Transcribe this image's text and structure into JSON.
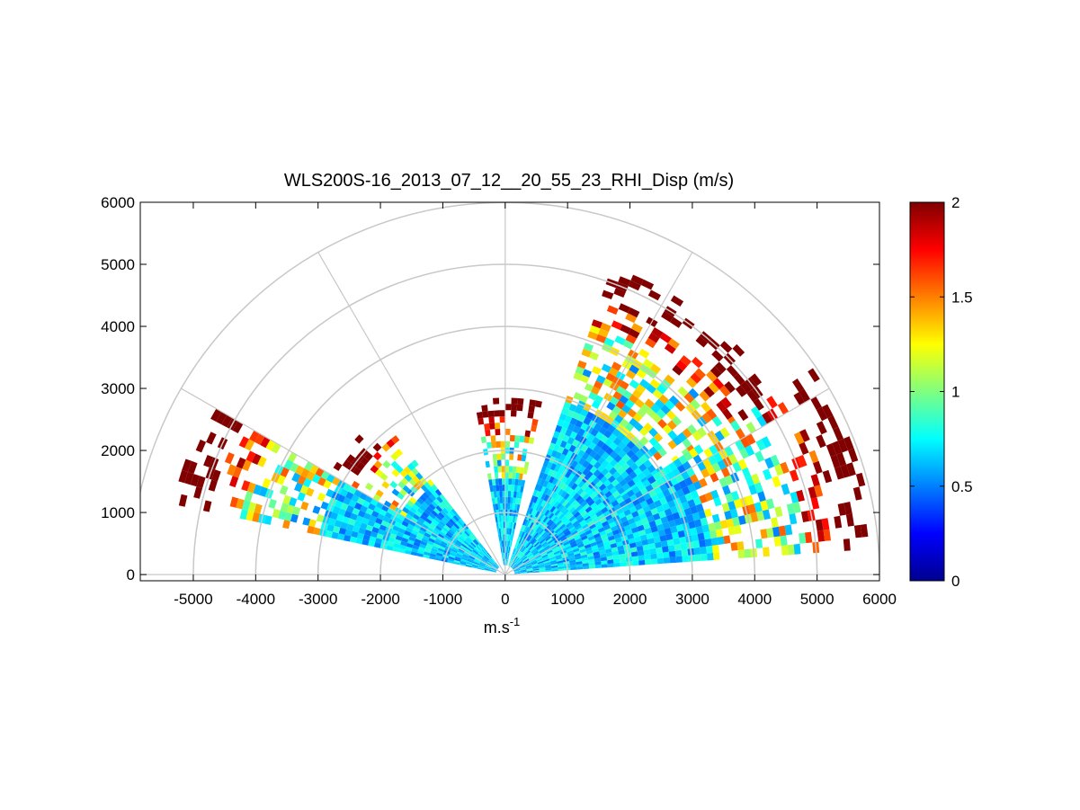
{
  "chart_data": {
    "type": "heatmap",
    "projection": "polar-rhi",
    "title": "WLS200S-16_2013_07_12__20_55_23_RHI_Disp (m/s)",
    "xlabel_base": "m.s",
    "xlabel_exp": "-1",
    "ylabel": "",
    "xlim": [
      -5850,
      6000
    ],
    "ylim": [
      -100,
      6000
    ],
    "x_ticks": [
      -5000,
      -4000,
      -3000,
      -2000,
      -1000,
      0,
      1000,
      2000,
      3000,
      4000,
      5000,
      6000
    ],
    "y_ticks": [
      0,
      1000,
      2000,
      3000,
      4000,
      5000,
      6000
    ],
    "polar_grid": {
      "radii": [
        1000,
        2000,
        3000,
        4000,
        5000,
        6000
      ],
      "spokes_deg": [
        0,
        30,
        60,
        90,
        120,
        150,
        180
      ]
    },
    "colorbar": {
      "colormap": "jet",
      "range": [
        0,
        2
      ],
      "ticks": [
        0,
        0.5,
        1,
        1.5,
        2
      ]
    },
    "sectors": [
      {
        "name": "left-low",
        "az_start": 150,
        "az_end": 167,
        "r_max": 5400,
        "cells": 0.6
      },
      {
        "name": "left-mid",
        "az_start": 128,
        "az_end": 150,
        "r_max": 3200,
        "cells": 0.7
      },
      {
        "name": "center",
        "az_start": 78,
        "az_end": 100,
        "r_max": 2800,
        "cells": 0.6
      },
      {
        "name": "right-high",
        "az_start": 33,
        "az_end": 70,
        "r_max": 5200,
        "cells": 0.7
      },
      {
        "name": "right-low",
        "az_start": 4,
        "az_end": 33,
        "r_max": 6000,
        "cells": 0.7
      }
    ]
  }
}
